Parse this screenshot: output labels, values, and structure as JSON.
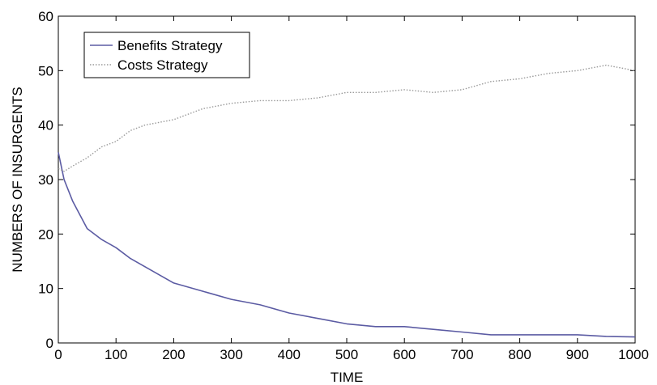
{
  "chart_data": {
    "type": "line",
    "title": "",
    "xlabel": "TIME",
    "ylabel": "NUMBERS OF INSURGENTS",
    "xlim": [
      0,
      1000
    ],
    "ylim": [
      0,
      60
    ],
    "xticks": [
      "0",
      "100",
      "200",
      "300",
      "400",
      "500",
      "600",
      "700",
      "800",
      "900",
      "1000"
    ],
    "yticks": [
      "0",
      "10",
      "20",
      "30",
      "40",
      "50",
      "60"
    ],
    "grid": false,
    "legend_position": "top-left",
    "x": [
      0,
      10,
      25,
      50,
      75,
      100,
      125,
      150,
      175,
      200,
      250,
      300,
      350,
      400,
      450,
      500,
      550,
      600,
      650,
      700,
      750,
      800,
      850,
      900,
      950,
      1000
    ],
    "series": [
      {
        "name": "Benefits Strategy",
        "color": "#5b5ba3",
        "style": "solid",
        "values": [
          35,
          30,
          26,
          21,
          19,
          17.5,
          15.5,
          14,
          12.5,
          11,
          9.5,
          8,
          7,
          5.5,
          4.5,
          3.5,
          3,
          3,
          2.5,
          2,
          1.5,
          1.5,
          1.5,
          1.5,
          1.2,
          1.1
        ]
      },
      {
        "name": "Costs Strategy",
        "color": "#9a9a9a",
        "style": "dotted",
        "values": [
          32,
          31.5,
          32.5,
          34,
          36,
          37,
          39,
          40,
          40.5,
          41,
          43,
          44,
          44.5,
          44.5,
          45,
          46,
          46,
          46.5,
          46,
          46.5,
          48,
          48.5,
          49.5,
          50,
          51,
          50
        ]
      }
    ]
  }
}
